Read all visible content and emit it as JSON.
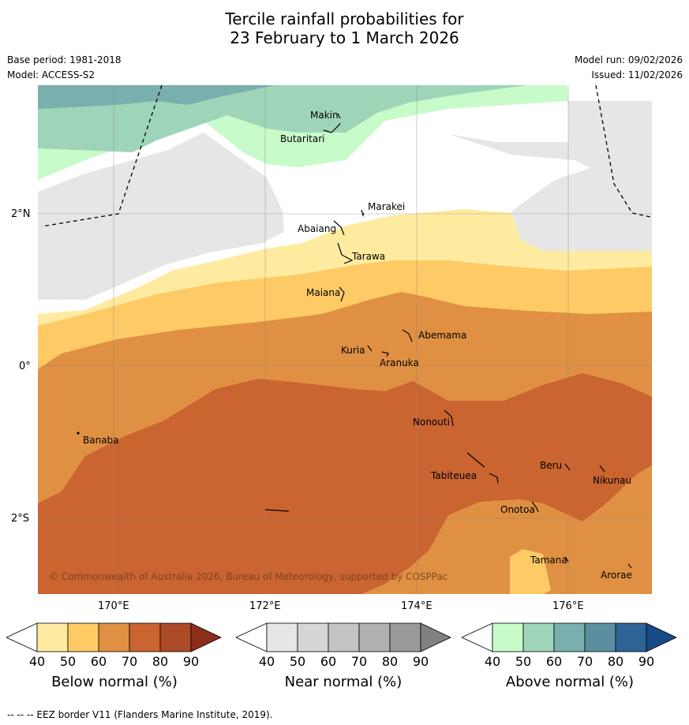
{
  "title_line1": "Tercile rainfall probabilities for",
  "title_line2": "23 February to 1 March 2026",
  "base_period": "Base period: 1981-2018",
  "model": "Model: ACCESS-S2",
  "model_run": "Model run: 09/02/2026",
  "issued": "Issued: 11/02/2026",
  "copyright": "© Commonwealth of Australia 2026, Bureau of Meteorology, supported by COSPPac",
  "lon_labels": [
    "170°E",
    "172°E",
    "174°E",
    "176°E"
  ],
  "lat_labels": [
    "2°N",
    "0°",
    "2°S"
  ],
  "places": [
    "Makin",
    "Butaritari",
    "Marakei",
    "Abaiang",
    "Tarawa",
    "Maiana",
    "Abemama",
    "Kuria",
    "Aranuka",
    "Nonouti",
    "Banaba",
    "Beru",
    "Nikunau",
    "Tabiteuea",
    "Onotoa",
    "Tamana",
    "Arorae"
  ],
  "colorbars": [
    {
      "label": "Below normal (%)",
      "ticks": [
        "40",
        "50",
        "60",
        "70",
        "80",
        "90"
      ],
      "colors": [
        "#ffffff",
        "#ffeba0",
        "#fdca65",
        "#e09042",
        "#ca6430",
        "#ad4a28",
        "#8b2e1a"
      ]
    },
    {
      "label": "Near normal (%)",
      "ticks": [
        "40",
        "50",
        "60",
        "70",
        "80",
        "90"
      ],
      "colors": [
        "#ffffff",
        "#e6e6e6",
        "#d6d6d6",
        "#c4c4c4",
        "#b0b0b0",
        "#9a9a9a",
        "#808080"
      ]
    },
    {
      "label": "Above normal (%)",
      "ticks": [
        "40",
        "50",
        "60",
        "70",
        "80",
        "90"
      ],
      "colors": [
        "#ffffff",
        "#c8fbca",
        "#9ed4b8",
        "#79b0ae",
        "#5b8fa0",
        "#2f6497",
        "#174c86"
      ]
    }
  ],
  "footnote": "--  --  -- EEZ border V11 (Flanders Marine Institute, 2019)."
}
